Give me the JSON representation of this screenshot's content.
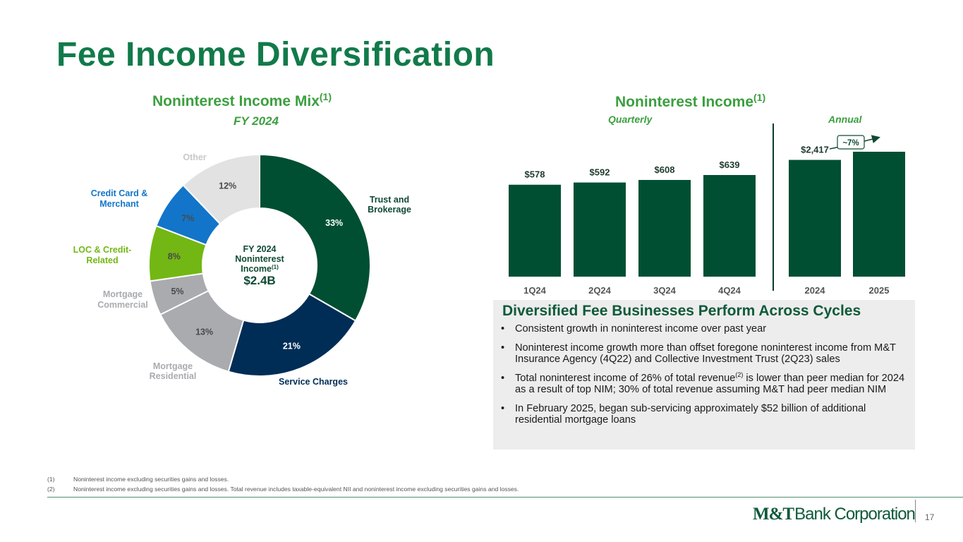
{
  "slide_title": "Fee Income Diversification",
  "page_number": "17",
  "logo": {
    "mark": "M&T",
    "text": "Bank Corporation"
  },
  "colors": {
    "title": "#127a4a",
    "section": "#3b9f3f",
    "bar": "#004f33"
  },
  "chart_data": [
    {
      "type": "pie",
      "title": "Noninterest Income Mix",
      "title_sup": "(1)",
      "subtitle": "FY 2024",
      "center": {
        "line1": "FY 2024",
        "line2": "Noninterest",
        "line3": "Income",
        "sup": "(1)",
        "value": "$2.4B"
      },
      "slices": [
        {
          "label": "Trust and Brokerage",
          "value": 33,
          "value_label": "33%",
          "color": "#004f33"
        },
        {
          "label": "Service Charges",
          "value": 21,
          "value_label": "21%",
          "color": "#002d56"
        },
        {
          "label": "Mortgage Residential",
          "value": 13,
          "value_label": "13%",
          "color": "#a9abaf"
        },
        {
          "label": "Mortgage Commercial",
          "value": 5,
          "value_label": "5%",
          "color": "#a9abaf"
        },
        {
          "label": "LOC & Credit-Related",
          "value": 8,
          "value_label": "8%",
          "color": "#73b714"
        },
        {
          "label": "Credit Card & Merchant",
          "value": 7,
          "value_label": "7%",
          "color": "#1275c9"
        },
        {
          "label": "Other",
          "value": 12,
          "value_label": "12%",
          "color": "#e2e2e2"
        }
      ],
      "callout_labels": {
        "trust": [
          "Trust and",
          "Brokerage"
        ],
        "service": [
          "Service Charges"
        ],
        "mres": [
          "Mortgage",
          "Residential"
        ],
        "mcom": [
          "Mortgage",
          "Commercial"
        ],
        "loc": [
          "LOC & Credit-",
          "Related"
        ],
        "cc": [
          "Credit Card &",
          "Merchant"
        ],
        "other": [
          "Other"
        ]
      }
    },
    {
      "type": "bar",
      "title": "Noninterest Income",
      "title_sup": "(1)",
      "groups": [
        {
          "name": "Quarterly",
          "categories": [
            "1Q24",
            "2Q24",
            "3Q24",
            "4Q24"
          ],
          "values": [
            578,
            592,
            608,
            639
          ],
          "value_labels": [
            "$578",
            "$592",
            "$608",
            "$639"
          ]
        },
        {
          "name": "Annual",
          "categories": [
            "2024",
            "2025"
          ],
          "values": [
            2417,
            2586
          ],
          "value_labels": [
            "$2,417",
            ""
          ]
        }
      ],
      "annotation": "~7%"
    }
  ],
  "panel": {
    "title": "Diversified Fee Businesses Perform Across Cycles",
    "bullet_char": "•",
    "bullets": [
      {
        "text": "Consistent growth in noninterest income over past year"
      },
      {
        "text": "Noninterest income growth more than offset foregone noninterest income from M&T Insurance Agency (4Q22) and Collective Investment Trust (2Q23) sales"
      },
      {
        "before": "Total noninterest income of 26% of total revenue",
        "sup": "(2)",
        "after": " is lower than peer median for 2024 as a result of top NIM; 30% of total revenue assuming M&T had peer median NIM"
      },
      {
        "text": "In February 2025, began sub-servicing approximately $52 billion of additional residential mortgage loans"
      }
    ]
  },
  "footnotes": [
    {
      "num": "(1)",
      "text": "Noninterest income excluding securities gains and losses."
    },
    {
      "num": "(2)",
      "text": "Noninterest income excluding securities gains and losses. Total revenue includes taxable-equivalent NII and noninterest income excluding securities gains and losses."
    }
  ]
}
